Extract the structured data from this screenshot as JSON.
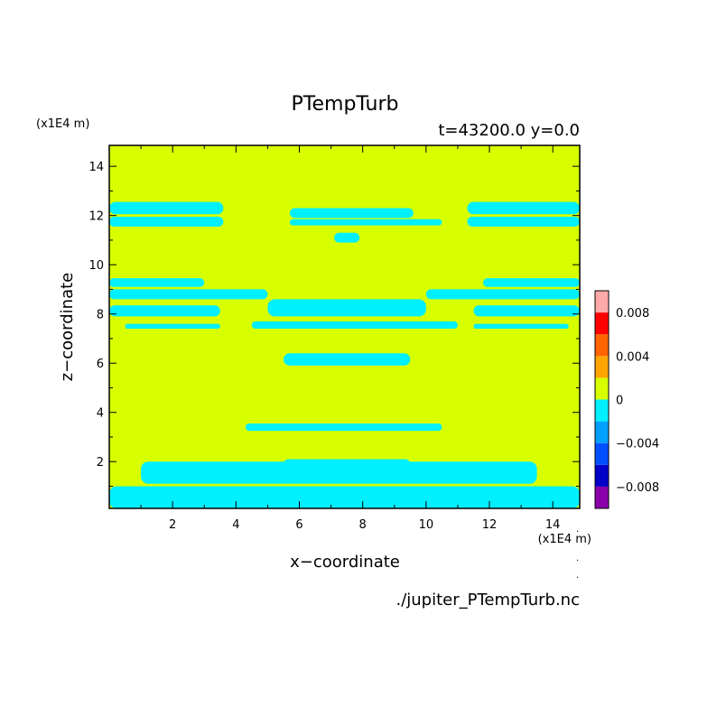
{
  "chart_data": {
    "type": "heatmap",
    "title": "PTempTurb",
    "subtitle": "t=43200.0 y=0.0",
    "xlabel": "x−coordinate",
    "ylabel": "z−coordinate",
    "x_unit": "(x1E4 m)",
    "y_unit": "(x1E4 m)",
    "footer": "./jupiter_PTempTurb.nc",
    "xlim": [
      0,
      14.85
    ],
    "ylim": [
      0.1,
      14.85
    ],
    "x_ticks": [
      2,
      4,
      6,
      8,
      10,
      12,
      14
    ],
    "y_ticks": [
      2,
      4,
      6,
      8,
      10,
      12,
      14
    ],
    "colorbar": {
      "levels": [
        -0.01,
        -0.008,
        -0.006,
        -0.004,
        -0.002,
        0,
        0.002,
        0.004,
        0.006,
        0.008,
        0.01
      ],
      "colors": [
        "#8b00aa",
        "#0000c8",
        "#0050ff",
        "#00a0ff",
        "#00f0ff",
        "#d8ff00",
        "#ffa500",
        "#ff6400",
        "#ff0000",
        "#ffaaaa"
      ],
      "tick_values": [
        -0.008,
        -0.004,
        0,
        0.004,
        0.008
      ],
      "tick_labels": [
        "−0.008",
        "−0.004",
        "0",
        "0.004",
        "0.008"
      ]
    },
    "background_level": "0 to 0.002",
    "negative_regions_level": "-0.002 to 0",
    "negative_regions": [
      {
        "x": [
          0,
          3.6
        ],
        "z": [
          12.05,
          12.55
        ]
      },
      {
        "x": [
          0,
          3.6
        ],
        "z": [
          11.55,
          11.95
        ]
      },
      {
        "x": [
          5.7,
          9.6
        ],
        "z": [
          11.9,
          12.3
        ]
      },
      {
        "x": [
          5.7,
          10.5
        ],
        "z": [
          11.6,
          11.85
        ]
      },
      {
        "x": [
          11.3,
          14.85
        ],
        "z": [
          12.05,
          12.55
        ]
      },
      {
        "x": [
          11.3,
          14.85
        ],
        "z": [
          11.55,
          11.95
        ]
      },
      {
        "x": [
          7.1,
          7.9
        ],
        "z": [
          10.9,
          11.3
        ]
      },
      {
        "x": [
          0,
          3.0
        ],
        "z": [
          9.1,
          9.45
        ]
      },
      {
        "x": [
          0,
          5.0
        ],
        "z": [
          8.6,
          9.0
        ]
      },
      {
        "x": [
          0,
          3.5
        ],
        "z": [
          7.9,
          8.35
        ]
      },
      {
        "x": [
          5.0,
          10.0
        ],
        "z": [
          7.9,
          8.6
        ]
      },
      {
        "x": [
          11.5,
          14.85
        ],
        "z": [
          7.9,
          8.35
        ]
      },
      {
        "x": [
          10.0,
          14.85
        ],
        "z": [
          8.6,
          9.0
        ]
      },
      {
        "x": [
          11.8,
          14.85
        ],
        "z": [
          9.1,
          9.45
        ]
      },
      {
        "x": [
          0.5,
          3.5
        ],
        "z": [
          7.4,
          7.6
        ]
      },
      {
        "x": [
          4.5,
          11.0
        ],
        "z": [
          7.4,
          7.7
        ]
      },
      {
        "x": [
          11.5,
          14.5
        ],
        "z": [
          7.4,
          7.6
        ]
      },
      {
        "x": [
          5.5,
          9.5
        ],
        "z": [
          5.9,
          6.4
        ]
      },
      {
        "x": [
          4.3,
          10.5
        ],
        "z": [
          3.25,
          3.55
        ]
      },
      {
        "x": [
          0,
          14.85
        ],
        "z": [
          0.1,
          1.0
        ]
      },
      {
        "x": [
          1.0,
          13.5
        ],
        "z": [
          1.1,
          2.0
        ]
      },
      {
        "x": [
          5.5,
          9.5
        ],
        "z": [
          1.7,
          2.1
        ]
      }
    ]
  }
}
